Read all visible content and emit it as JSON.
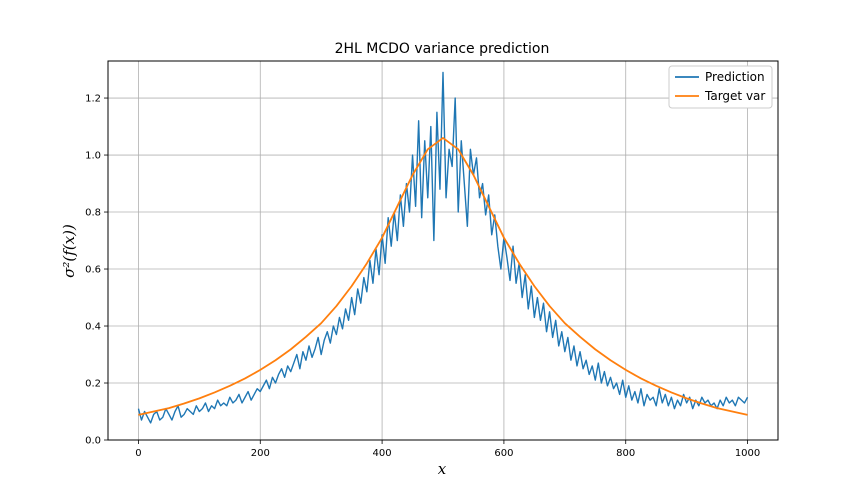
{
  "chart_data": {
    "type": "line",
    "title": "2HL MCDO variance prediction",
    "xlabel": "x",
    "ylabel": "σ²(f(x))",
    "xlim": [
      -50,
      1050
    ],
    "ylim": [
      0.0,
      1.33
    ],
    "xticks": [
      "0",
      "200",
      "400",
      "600",
      "800",
      "1000"
    ],
    "yticks": [
      "0.0",
      "0.2",
      "0.4",
      "0.6",
      "0.8",
      "1.0",
      "1.2"
    ],
    "grid": true,
    "legend_position": "top-right",
    "series": [
      {
        "name": "Prediction",
        "color": "#1f77b4",
        "x": [
          0,
          5,
          10,
          15,
          20,
          25,
          30,
          35,
          40,
          45,
          50,
          55,
          60,
          65,
          70,
          75,
          80,
          85,
          90,
          95,
          100,
          105,
          110,
          115,
          120,
          125,
          130,
          135,
          140,
          145,
          150,
          155,
          160,
          165,
          170,
          175,
          180,
          185,
          190,
          195,
          200,
          205,
          210,
          215,
          220,
          225,
          230,
          235,
          240,
          245,
          250,
          255,
          260,
          265,
          270,
          275,
          280,
          285,
          290,
          295,
          300,
          305,
          310,
          315,
          320,
          325,
          330,
          335,
          340,
          345,
          350,
          355,
          360,
          365,
          370,
          375,
          380,
          385,
          390,
          395,
          400,
          405,
          410,
          415,
          420,
          425,
          430,
          435,
          440,
          445,
          450,
          455,
          460,
          465,
          470,
          475,
          480,
          485,
          490,
          495,
          500,
          505,
          510,
          515,
          520,
          525,
          530,
          535,
          540,
          545,
          550,
          555,
          560,
          565,
          570,
          575,
          580,
          585,
          590,
          595,
          600,
          605,
          610,
          615,
          620,
          625,
          630,
          635,
          640,
          645,
          650,
          655,
          660,
          665,
          670,
          675,
          680,
          685,
          690,
          695,
          700,
          705,
          710,
          715,
          720,
          725,
          730,
          735,
          740,
          745,
          750,
          755,
          760,
          765,
          770,
          775,
          780,
          785,
          790,
          795,
          800,
          805,
          810,
          815,
          820,
          825,
          830,
          835,
          840,
          845,
          850,
          855,
          860,
          865,
          870,
          875,
          880,
          885,
          890,
          895,
          900,
          905,
          910,
          915,
          920,
          925,
          930,
          935,
          940,
          945,
          950,
          955,
          960,
          965,
          970,
          975,
          980,
          985,
          990,
          995,
          1000
        ],
        "y": [
          0.11,
          0.07,
          0.1,
          0.08,
          0.06,
          0.09,
          0.1,
          0.07,
          0.08,
          0.11,
          0.09,
          0.07,
          0.1,
          0.12,
          0.08,
          0.09,
          0.11,
          0.1,
          0.09,
          0.12,
          0.1,
          0.11,
          0.13,
          0.1,
          0.12,
          0.11,
          0.14,
          0.12,
          0.13,
          0.12,
          0.15,
          0.13,
          0.14,
          0.16,
          0.13,
          0.15,
          0.17,
          0.14,
          0.16,
          0.18,
          0.17,
          0.19,
          0.21,
          0.18,
          0.22,
          0.2,
          0.23,
          0.25,
          0.22,
          0.26,
          0.24,
          0.27,
          0.3,
          0.25,
          0.31,
          0.28,
          0.33,
          0.29,
          0.32,
          0.36,
          0.3,
          0.35,
          0.38,
          0.34,
          0.4,
          0.37,
          0.43,
          0.39,
          0.46,
          0.42,
          0.5,
          0.44,
          0.53,
          0.48,
          0.57,
          0.52,
          0.63,
          0.55,
          0.67,
          0.58,
          0.72,
          0.62,
          0.78,
          0.68,
          0.8,
          0.7,
          0.86,
          0.75,
          0.9,
          0.8,
          1.0,
          0.82,
          1.12,
          0.78,
          1.05,
          0.85,
          1.1,
          0.7,
          1.15,
          0.88,
          1.29,
          0.85,
          1.02,
          0.96,
          1.2,
          0.8,
          1.05,
          0.9,
          0.75,
          1.02,
          0.93,
          0.99,
          0.85,
          0.9,
          0.79,
          0.86,
          0.72,
          0.79,
          0.68,
          0.6,
          0.71,
          0.64,
          0.56,
          0.68,
          0.55,
          0.62,
          0.5,
          0.58,
          0.46,
          0.54,
          0.43,
          0.5,
          0.42,
          0.48,
          0.38,
          0.45,
          0.36,
          0.42,
          0.33,
          0.38,
          0.31,
          0.36,
          0.28,
          0.33,
          0.26,
          0.31,
          0.25,
          0.28,
          0.23,
          0.26,
          0.21,
          0.27,
          0.2,
          0.24,
          0.19,
          0.22,
          0.18,
          0.2,
          0.16,
          0.21,
          0.15,
          0.19,
          0.14,
          0.17,
          0.13,
          0.18,
          0.12,
          0.16,
          0.14,
          0.15,
          0.12,
          0.18,
          0.13,
          0.16,
          0.12,
          0.15,
          0.11,
          0.14,
          0.12,
          0.16,
          0.13,
          0.15,
          0.11,
          0.14,
          0.12,
          0.15,
          0.13,
          0.14,
          0.12,
          0.13,
          0.11,
          0.14,
          0.12,
          0.15,
          0.13,
          0.14,
          0.12,
          0.15,
          0.14,
          0.13,
          0.15
        ]
      },
      {
        "name": "Target var",
        "color": "#ff7f0e",
        "x": [
          0,
          25,
          50,
          75,
          100,
          125,
          150,
          175,
          200,
          225,
          250,
          275,
          300,
          325,
          350,
          375,
          400,
          425,
          450,
          475,
          500,
          525,
          550,
          575,
          600,
          625,
          650,
          675,
          700,
          725,
          750,
          775,
          800,
          825,
          850,
          875,
          900,
          925,
          950,
          975,
          1000
        ],
        "y": [
          0.088,
          0.1,
          0.112,
          0.128,
          0.146,
          0.167,
          0.19,
          0.216,
          0.246,
          0.28,
          0.318,
          0.362,
          0.41,
          0.47,
          0.54,
          0.62,
          0.71,
          0.82,
          0.93,
          1.02,
          1.06,
          1.02,
          0.93,
          0.82,
          0.71,
          0.62,
          0.54,
          0.47,
          0.41,
          0.362,
          0.318,
          0.28,
          0.246,
          0.216,
          0.19,
          0.167,
          0.146,
          0.128,
          0.112,
          0.1,
          0.088
        ]
      }
    ]
  }
}
